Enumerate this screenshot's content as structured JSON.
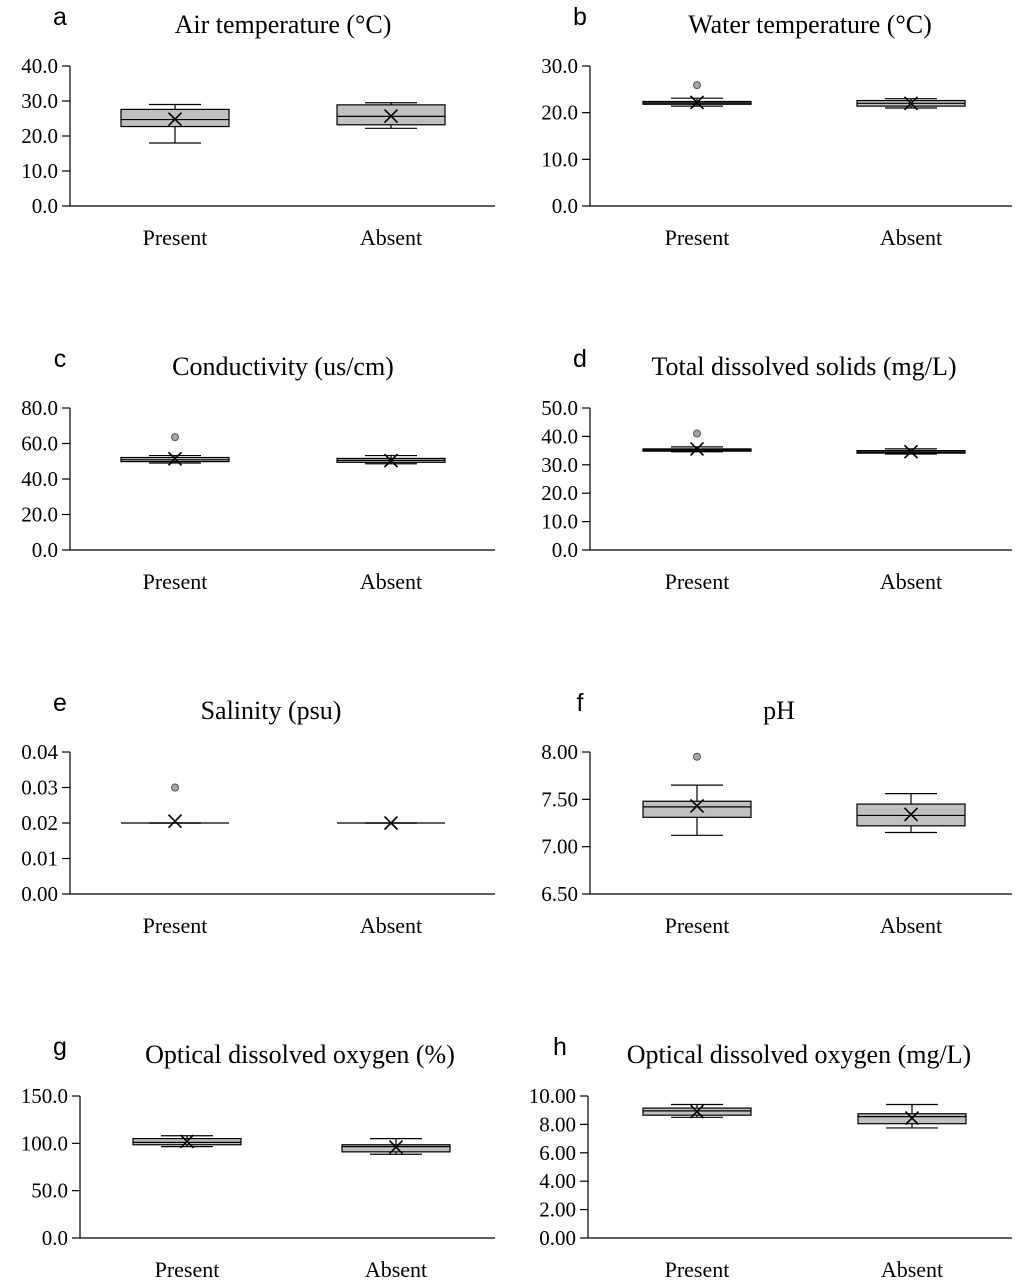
{
  "chart_data": [
    {
      "type": "box",
      "panel": "a",
      "title": "Air temperature (°C)",
      "categories": [
        "Present",
        "Absent"
      ],
      "ylim": [
        0,
        40
      ],
      "yticks": [
        "0.0",
        "10.0",
        "20.0",
        "30.0",
        "40.0"
      ],
      "boxes": [
        {
          "min": 18.0,
          "q1": 22.7,
          "median": 24.7,
          "q3": 27.6,
          "max": 29.0,
          "mean": 24.8,
          "outliers": []
        },
        {
          "min": 22.2,
          "q1": 23.2,
          "median": 25.6,
          "q3": 28.9,
          "max": 29.5,
          "mean": 25.7,
          "outliers": []
        }
      ]
    },
    {
      "type": "box",
      "panel": "b",
      "title": "Water temperature (°C)",
      "categories": [
        "Present",
        "Absent"
      ],
      "ylim": [
        0,
        30
      ],
      "yticks": [
        "0.0",
        "10.0",
        "20.0",
        "30.0"
      ],
      "boxes": [
        {
          "min": 21.4,
          "q1": 21.8,
          "median": 22.1,
          "q3": 22.4,
          "max": 23.1,
          "mean": 22.2,
          "outliers": [
            25.9
          ]
        },
        {
          "min": 21.0,
          "q1": 21.4,
          "median": 22.0,
          "q3": 22.6,
          "max": 23.0,
          "mean": 22.0,
          "outliers": []
        }
      ]
    },
    {
      "type": "box",
      "panel": "c",
      "title": "Conductivity (us/cm)",
      "categories": [
        "Present",
        "Absent"
      ],
      "ylim": [
        0,
        80
      ],
      "yticks": [
        "0.0",
        "20.0",
        "40.0",
        "60.0",
        "80.0"
      ],
      "boxes": [
        {
          "min": 49.0,
          "q1": 49.8,
          "median": 50.8,
          "q3": 52.1,
          "max": 53.2,
          "mean": 51.4,
          "outliers": [
            63.6
          ]
        },
        {
          "min": 48.6,
          "q1": 49.4,
          "median": 50.5,
          "q3": 51.6,
          "max": 53.2,
          "mean": 50.4,
          "outliers": []
        }
      ]
    },
    {
      "type": "box",
      "panel": "d",
      "title": "Total dissolved solids (mg/L)",
      "categories": [
        "Present",
        "Absent"
      ],
      "ylim": [
        0,
        50
      ],
      "yticks": [
        "0.0",
        "10.0",
        "20.0",
        "30.0",
        "40.0",
        "50.0"
      ],
      "boxes": [
        {
          "min": 34.6,
          "q1": 34.8,
          "median": 35.2,
          "q3": 35.6,
          "max": 36.3,
          "mean": 35.6,
          "outliers": [
            41.0
          ]
        },
        {
          "min": 33.8,
          "q1": 34.1,
          "median": 34.5,
          "q3": 35.0,
          "max": 35.6,
          "mean": 34.6,
          "outliers": []
        }
      ]
    },
    {
      "type": "box",
      "panel": "e",
      "title": "Salinity (psu)",
      "categories": [
        "Present",
        "Absent"
      ],
      "ylim": [
        0,
        0.04
      ],
      "yticks": [
        "0.00",
        "0.01",
        "0.02",
        "0.03",
        "0.04"
      ],
      "boxes": [
        {
          "min": 0.02,
          "q1": 0.02,
          "median": 0.02,
          "q3": 0.02,
          "max": 0.02,
          "mean": 0.0205,
          "outliers": [
            0.03
          ]
        },
        {
          "min": 0.02,
          "q1": 0.02,
          "median": 0.02,
          "q3": 0.02,
          "max": 0.02,
          "mean": 0.02,
          "outliers": []
        }
      ]
    },
    {
      "type": "box",
      "panel": "f",
      "title": "pH",
      "categories": [
        "Present",
        "Absent"
      ],
      "ylim": [
        6.5,
        8.0
      ],
      "yticks": [
        "6.50",
        "7.00",
        "7.50",
        "8.00"
      ],
      "boxes": [
        {
          "min": 7.12,
          "q1": 7.31,
          "median": 7.42,
          "q3": 7.48,
          "max": 7.65,
          "mean": 7.43,
          "outliers": [
            7.95
          ]
        },
        {
          "min": 7.15,
          "q1": 7.22,
          "median": 7.33,
          "q3": 7.45,
          "max": 7.56,
          "mean": 7.34,
          "outliers": []
        }
      ]
    },
    {
      "type": "box",
      "panel": "g",
      "title": "Optical dissolved oxygen (%)",
      "categories": [
        "Present",
        "Absent"
      ],
      "ylim": [
        0,
        150
      ],
      "yticks": [
        "0.0",
        "50.0",
        "100.0",
        "150.0"
      ],
      "boxes": [
        {
          "min": 96.5,
          "q1": 98.5,
          "median": 101.0,
          "q3": 105.0,
          "max": 108.0,
          "mean": 102.0,
          "outliers": []
        },
        {
          "min": 88.5,
          "q1": 91.0,
          "median": 96.5,
          "q3": 98.5,
          "max": 105.0,
          "mean": 96.0,
          "outliers": []
        }
      ]
    },
    {
      "type": "box",
      "panel": "h",
      "title": "Optical dissolved oxygen (mg/L)",
      "categories": [
        "Present",
        "Absent"
      ],
      "ylim": [
        0,
        10
      ],
      "yticks": [
        "0.00",
        "2.00",
        "4.00",
        "6.00",
        "8.00",
        "10.00"
      ],
      "boxes": [
        {
          "min": 8.5,
          "q1": 8.65,
          "median": 8.95,
          "q3": 9.15,
          "max": 9.4,
          "mean": 8.9,
          "outliers": []
        },
        {
          "min": 7.75,
          "q1": 8.05,
          "median": 8.55,
          "q3": 8.75,
          "max": 9.4,
          "mean": 8.45,
          "outliers": []
        }
      ]
    }
  ],
  "colors": {
    "box_fill": "#c0c0c0",
    "outlier_fill": "#a6a6a6",
    "stroke": "#000000"
  }
}
